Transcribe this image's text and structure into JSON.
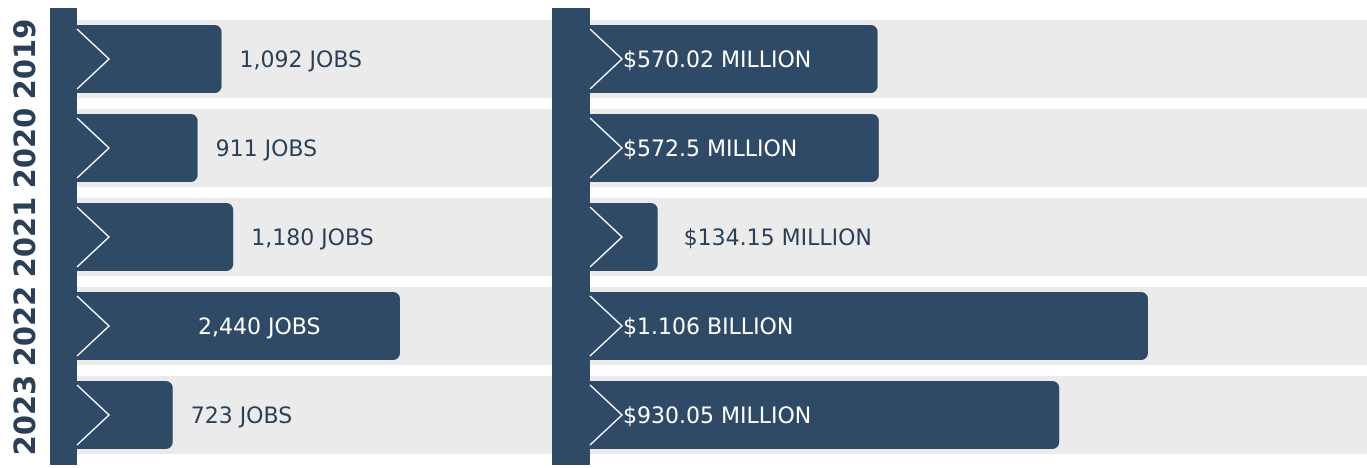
{
  "chart_data": [
    {
      "type": "bar",
      "orientation": "horizontal",
      "categories": [
        "2019",
        "2020",
        "2021",
        "2022",
        "2023"
      ],
      "values": [
        1092,
        911,
        1180,
        2440,
        723
      ],
      "value_labels": [
        "1,092 JOBS",
        "911 JOBS",
        "1,180 JOBS",
        "2,440 JOBS",
        "723 JOBS"
      ],
      "color": "#2f4a66"
    },
    {
      "type": "bar",
      "orientation": "horizontal",
      "values": [
        570.02,
        572.5,
        134.15,
        1106,
        930.05
      ],
      "value_labels": [
        "$570.02 MILLION",
        "$572.5 MILLION",
        "$134.15 MILLION",
        "$1.106 BILLION",
        "$930.05 MILLION"
      ],
      "color": "#2f4a66"
    }
  ]
}
